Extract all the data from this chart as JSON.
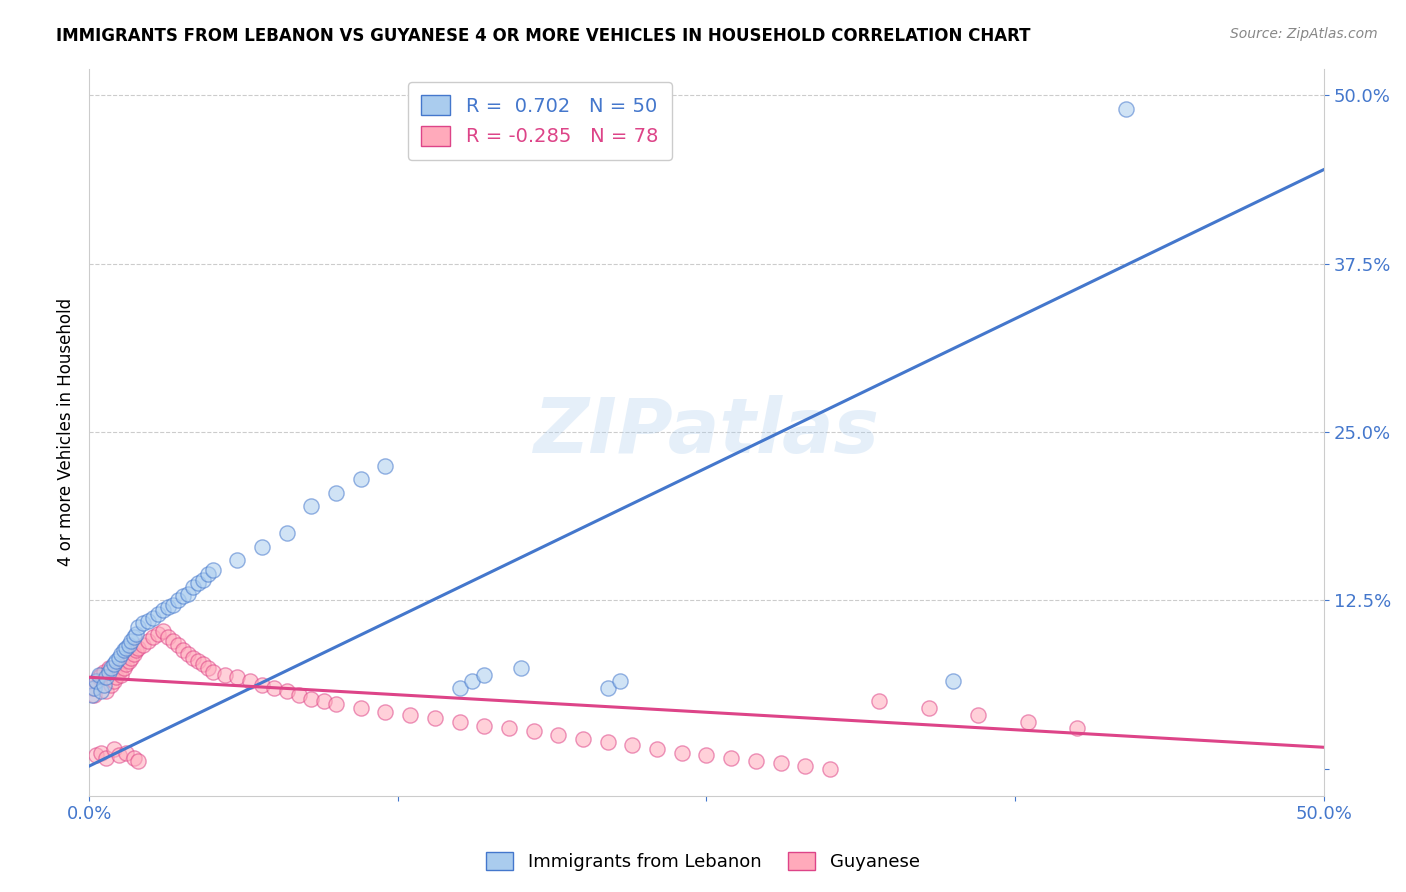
{
  "title": "IMMIGRANTS FROM LEBANON VS GUYANESE 4 OR MORE VEHICLES IN HOUSEHOLD CORRELATION CHART",
  "source": "Source: ZipAtlas.com",
  "ylabel": "4 or more Vehicles in Household",
  "xlim": [
    0.0,
    0.5
  ],
  "ylim": [
    -0.02,
    0.52
  ],
  "legend1_label": "Immigrants from Lebanon",
  "legend2_label": "Guyanese",
  "R1": 0.702,
  "N1": 50,
  "R2": -0.285,
  "N2": 78,
  "color1": "#AACCEE",
  "color2": "#FFAABB",
  "line1_color": "#4477CC",
  "line2_color": "#DD4488",
  "watermark": "ZIPatlas",
  "blue_line_x0": 0.0,
  "blue_line_y0": 0.002,
  "blue_line_x1": 0.5,
  "blue_line_y1": 0.445,
  "pink_line_x0": 0.0,
  "pink_line_y0": 0.068,
  "pink_line_x1": 0.5,
  "pink_line_y1": 0.016,
  "blue_points_x": [
    0.001,
    0.002,
    0.003,
    0.004,
    0.005,
    0.006,
    0.007,
    0.008,
    0.009,
    0.01,
    0.011,
    0.012,
    0.013,
    0.014,
    0.015,
    0.016,
    0.017,
    0.018,
    0.019,
    0.02,
    0.022,
    0.024,
    0.026,
    0.028,
    0.03,
    0.032,
    0.034,
    0.036,
    0.038,
    0.04,
    0.042,
    0.044,
    0.046,
    0.048,
    0.05,
    0.06,
    0.07,
    0.08,
    0.09,
    0.1,
    0.11,
    0.12,
    0.15,
    0.155,
    0.16,
    0.175,
    0.21,
    0.215,
    0.35,
    0.42
  ],
  "blue_points_y": [
    0.055,
    0.06,
    0.065,
    0.07,
    0.058,
    0.062,
    0.068,
    0.072,
    0.075,
    0.078,
    0.08,
    0.082,
    0.085,
    0.088,
    0.09,
    0.092,
    0.095,
    0.098,
    0.1,
    0.105,
    0.108,
    0.11,
    0.112,
    0.115,
    0.118,
    0.12,
    0.122,
    0.125,
    0.128,
    0.13,
    0.135,
    0.138,
    0.14,
    0.145,
    0.148,
    0.155,
    0.165,
    0.175,
    0.195,
    0.205,
    0.215,
    0.225,
    0.06,
    0.065,
    0.07,
    0.075,
    0.06,
    0.065,
    0.065,
    0.49
  ],
  "pink_points_x": [
    0.001,
    0.002,
    0.003,
    0.004,
    0.005,
    0.006,
    0.007,
    0.008,
    0.009,
    0.01,
    0.011,
    0.012,
    0.013,
    0.014,
    0.015,
    0.016,
    0.017,
    0.018,
    0.019,
    0.02,
    0.022,
    0.024,
    0.026,
    0.028,
    0.03,
    0.032,
    0.034,
    0.036,
    0.038,
    0.04,
    0.042,
    0.044,
    0.046,
    0.048,
    0.05,
    0.055,
    0.06,
    0.065,
    0.07,
    0.075,
    0.08,
    0.085,
    0.09,
    0.095,
    0.1,
    0.11,
    0.12,
    0.13,
    0.14,
    0.15,
    0.16,
    0.17,
    0.18,
    0.19,
    0.2,
    0.21,
    0.22,
    0.23,
    0.24,
    0.25,
    0.26,
    0.27,
    0.28,
    0.29,
    0.3,
    0.32,
    0.34,
    0.36,
    0.38,
    0.4,
    0.003,
    0.005,
    0.007,
    0.01,
    0.012,
    0.015,
    0.018,
    0.02
  ],
  "pink_points_y": [
    0.06,
    0.055,
    0.065,
    0.068,
    0.07,
    0.072,
    0.058,
    0.075,
    0.062,
    0.065,
    0.068,
    0.072,
    0.07,
    0.075,
    0.078,
    0.08,
    0.082,
    0.085,
    0.088,
    0.09,
    0.092,
    0.095,
    0.098,
    0.1,
    0.102,
    0.098,
    0.095,
    0.092,
    0.088,
    0.085,
    0.082,
    0.08,
    0.078,
    0.075,
    0.072,
    0.07,
    0.068,
    0.065,
    0.062,
    0.06,
    0.058,
    0.055,
    0.052,
    0.05,
    0.048,
    0.045,
    0.042,
    0.04,
    0.038,
    0.035,
    0.032,
    0.03,
    0.028,
    0.025,
    0.022,
    0.02,
    0.018,
    0.015,
    0.012,
    0.01,
    0.008,
    0.006,
    0.004,
    0.002,
    0.0,
    0.05,
    0.045,
    0.04,
    0.035,
    0.03,
    0.01,
    0.012,
    0.008,
    0.015,
    0.01,
    0.012,
    0.008,
    0.006
  ]
}
